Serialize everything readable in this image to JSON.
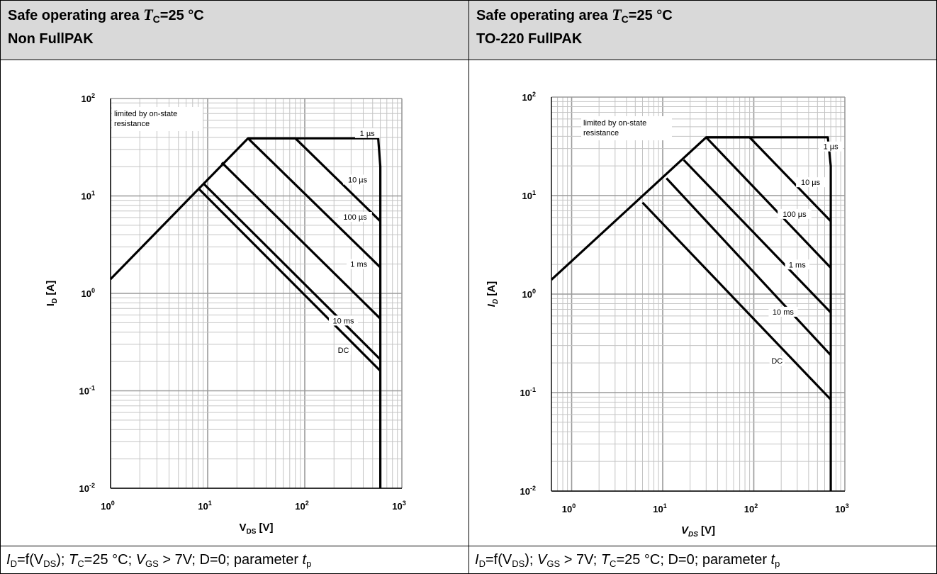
{
  "panels": [
    {
      "title_prefix": "Safe operating area ",
      "title_t": "T",
      "title_sub": "C",
      "title_suffix": "=25 °C",
      "subtitle": "Non FullPAK",
      "caption": {
        "id": "I",
        "id_sub": "D",
        "f": "=f(V",
        "f_sub": "DS",
        "rest1": "); ",
        "tc": "T",
        "tc_sub": "C",
        "tc_val": "=25 °C; ",
        "vgs": "V",
        "vgs_sub": "GS",
        "vgs_val": " > 7V; D=0; parameter ",
        "tp": "t",
        "tp_sub": "p"
      }
    },
    {
      "title_prefix": "Safe operating area ",
      "title_t": "T",
      "title_sub": "C",
      "title_suffix": "=25 °C",
      "subtitle": "TO-220 FullPAK",
      "caption": {
        "id": "I",
        "id_sub": "D",
        "f": "=f(V",
        "f_sub": "DS",
        "rest1": "); ",
        "vgs": "V",
        "vgs_sub": "GS",
        "vgs_val": " > 7V; ",
        "tc": "T",
        "tc_sub": "C",
        "tc_val": "=25 °C; D=0; parameter ",
        "tp": "t",
        "tp_sub": "p"
      }
    }
  ],
  "chart_data": [
    {
      "type": "line",
      "xscale": "log",
      "yscale": "log",
      "xlim": [
        1,
        1000
      ],
      "ylim": [
        0.01,
        100
      ],
      "xlabel_main": "V",
      "xlabel_sub": "DS",
      "xlabel_unit": " [V]",
      "ylabel_main": "I",
      "ylabel_sub": "D",
      "ylabel_unit": " [A]",
      "x_ticks": [
        {
          "base": "10",
          "exp": "0",
          "v": 1
        },
        {
          "base": "10",
          "exp": "1",
          "v": 10
        },
        {
          "base": "10",
          "exp": "2",
          "v": 100
        },
        {
          "base": "10",
          "exp": "3",
          "v": 1000
        }
      ],
      "y_ticks": [
        {
          "base": "10",
          "exp": "2",
          "v": 100
        },
        {
          "base": "10",
          "exp": "1",
          "v": 10
        },
        {
          "base": "10",
          "exp": "0",
          "v": 1
        },
        {
          "base": "10",
          "exp": "-1",
          "v": 0.1
        },
        {
          "base": "10",
          "exp": "-2",
          "v": 0.01
        }
      ],
      "annotation": [
        "limited by on-state",
        "resistance"
      ],
      "series": [
        {
          "name": "1 µs",
          "label_at": [
            440,
            42
          ],
          "points": [
            [
              1,
              1.4
            ],
            [
              26,
              39
            ],
            [
              570,
              39
            ],
            [
              600,
              20
            ],
            [
              600,
              0.01
            ]
          ]
        },
        {
          "name": "10 µs",
          "label_at": [
            350,
            14
          ],
          "points": [
            [
              26,
              39
            ],
            [
              80,
              39
            ],
            [
              600,
              5.5
            ]
          ]
        },
        {
          "name": "100 µs",
          "label_at": [
            330,
            5.8
          ],
          "points": [
            [
              26,
              39
            ],
            [
              600,
              1.85
            ]
          ]
        },
        {
          "name": "1 ms",
          "label_at": [
            360,
            1.9
          ],
          "points": [
            [
              14,
              22
            ],
            [
              600,
              0.55
            ]
          ]
        },
        {
          "name": "10 ms",
          "label_at": [
            250,
            0.5
          ],
          "points": [
            [
              9,
              13.5
            ],
            [
              600,
              0.21
            ]
          ]
        },
        {
          "name": "DC",
          "label_at": [
            250,
            0.25
          ],
          "points": [
            [
              8,
              12
            ],
            [
              600,
              0.16
            ]
          ]
        }
      ]
    },
    {
      "type": "line",
      "xscale": "log",
      "yscale": "log",
      "xlim": [
        0.6,
        1000
      ],
      "ylim": [
        0.01,
        100
      ],
      "xlabel_main": "V",
      "xlabel_sub": "DS",
      "xlabel_unit": " [V]",
      "ylabel_main": "I",
      "ylabel_sub": "D",
      "ylabel_unit": " [A]",
      "x_ticks": [
        {
          "base": "10",
          "exp": "0",
          "v": 1
        },
        {
          "base": "10",
          "exp": "1",
          "v": 10
        },
        {
          "base": "10",
          "exp": "2",
          "v": 100
        },
        {
          "base": "10",
          "exp": "3",
          "v": 1000
        }
      ],
      "y_ticks": [
        {
          "base": "10",
          "exp": "2",
          "v": 100
        },
        {
          "base": "10",
          "exp": "1",
          "v": 10
        },
        {
          "base": "10",
          "exp": "0",
          "v": 1
        },
        {
          "base": "10",
          "exp": "-1",
          "v": 0.1
        },
        {
          "base": "10",
          "exp": "-2",
          "v": 0.01
        }
      ],
      "annotation": [
        "limited by on-state",
        "resistance"
      ],
      "series": [
        {
          "name": "1 µs",
          "label_at": [
            700,
            30
          ],
          "points": [
            [
              0.6,
              1.4
            ],
            [
              30,
              39
            ],
            [
              650,
              39
            ],
            [
              700,
              20
            ],
            [
              700,
              0.01
            ]
          ]
        },
        {
          "name": "10 µs",
          "label_at": [
            420,
            13
          ],
          "points": [
            [
              30,
              39
            ],
            [
              90,
              39
            ],
            [
              700,
              5.5
            ]
          ]
        },
        {
          "name": "100 µs",
          "label_at": [
            280,
            6.2
          ],
          "points": [
            [
              30,
              39
            ],
            [
              700,
              1.85
            ]
          ]
        },
        {
          "name": "1 ms",
          "label_at": [
            300,
            1.9
          ],
          "points": [
            [
              17,
              23
            ],
            [
              700,
              0.65
            ]
          ]
        },
        {
          "name": "10 ms",
          "label_at": [
            210,
            0.63
          ],
          "points": [
            [
              11,
              15
            ],
            [
              700,
              0.24
            ]
          ]
        },
        {
          "name": "DC",
          "label_at": [
            180,
            0.2
          ],
          "points": [
            [
              6,
              8.5
            ],
            [
              700,
              0.085
            ]
          ]
        }
      ]
    }
  ]
}
